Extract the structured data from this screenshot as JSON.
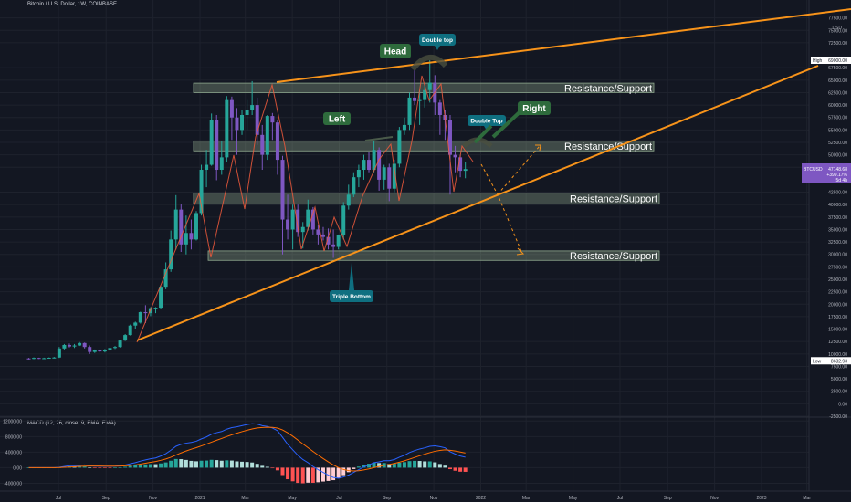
{
  "header": {
    "symbol_title": "Bitcoin / U.S. Dollar, 1W, COINBASE"
  },
  "currency": "USD",
  "chart_data": {
    "type": "candlestick",
    "title": "Bitcoin / U.S. Dollar, 1W, COINBASE",
    "xlabel": "",
    "ylabel": "",
    "ylim": [
      -2500,
      80000
    ],
    "grid": true,
    "x_tick_labels": [
      "Jul",
      "Sep",
      "Nov",
      "2021",
      "Mar",
      "May",
      "Jul",
      "Sep",
      "Nov",
      "2022",
      "Mar",
      "May",
      "Jul",
      "Sep",
      "Nov",
      "2023",
      "Mar"
    ],
    "x_tick_days": [
      0,
      62,
      123,
      184,
      243,
      304,
      365,
      427,
      488,
      549,
      608,
      669,
      730,
      792,
      853,
      914,
      973
    ],
    "y_tick_labels": [
      "-2500.00",
      "0.00",
      "2500.00",
      "5000.00",
      "7500.00",
      "10000.00",
      "12500.00",
      "15000.00",
      "17500.00",
      "20000.00",
      "22500.00",
      "25000.00",
      "27500.00",
      "30000.00",
      "32500.00",
      "35000.00",
      "37500.00",
      "40000.00",
      "42500.00",
      "47500.00",
      "50000.00",
      "52500.00",
      "55000.00",
      "57500.00",
      "60000.00",
      "62500.00",
      "65000.00",
      "67500.00",
      "72500.00",
      "75000.00",
      "77500.00"
    ],
    "price_labels": {
      "high": {
        "label": "High",
        "value": "69000.00"
      },
      "low": {
        "label": "Low",
        "value": "8632.93"
      },
      "current": {
        "ticker": "BTCUSD",
        "price": "47148.68",
        "change": "+399.17%",
        "countdown": "5d 4h"
      }
    },
    "candles": [
      [
        9100,
        9200,
        8900,
        9050
      ],
      [
        9050,
        9300,
        8950,
        9200
      ],
      [
        9200,
        9250,
        9000,
        9100
      ],
      [
        9100,
        9250,
        9000,
        9150
      ],
      [
        9150,
        9300,
        9050,
        9230
      ],
      [
        9230,
        9400,
        9100,
        9280
      ],
      [
        9280,
        11400,
        9200,
        11100
      ],
      [
        11100,
        12000,
        10900,
        11800
      ],
      [
        11800,
        12100,
        11300,
        11500
      ],
      [
        11500,
        12000,
        11200,
        11700
      ],
      [
        11700,
        12400,
        11600,
        12200
      ],
      [
        12200,
        12300,
        11100,
        11400
      ],
      [
        11400,
        11700,
        10000,
        10400
      ],
      [
        10400,
        10900,
        10200,
        10700
      ],
      [
        10700,
        10900,
        10300,
        10500
      ],
      [
        10500,
        11000,
        10300,
        10800
      ],
      [
        10800,
        11300,
        10600,
        11200
      ],
      [
        11200,
        11600,
        11000,
        11400
      ],
      [
        11400,
        12800,
        11300,
        12700
      ],
      [
        12700,
        14000,
        12600,
        13800
      ],
      [
        13800,
        15900,
        13700,
        15700
      ],
      [
        15700,
        16500,
        15000,
        16300
      ],
      [
        16300,
        18500,
        16100,
        18400
      ],
      [
        18400,
        19800,
        16200,
        18200
      ],
      [
        18200,
        19400,
        17600,
        19200
      ],
      [
        19200,
        19400,
        18200,
        19300
      ],
      [
        19300,
        23800,
        19000,
        23500
      ],
      [
        23500,
        28400,
        23000,
        27000
      ],
      [
        27000,
        34800,
        26500,
        33000
      ],
      [
        33000,
        41900,
        31000,
        39000
      ],
      [
        39000,
        40100,
        30500,
        32000
      ],
      [
        32000,
        37800,
        30000,
        34300
      ],
      [
        34300,
        37000,
        31000,
        33000
      ],
      [
        33000,
        38700,
        32800,
        38300
      ],
      [
        38300,
        48000,
        37800,
        47000
      ],
      [
        47000,
        51000,
        43500,
        48000
      ],
      [
        48000,
        58300,
        47800,
        57000
      ],
      [
        57000,
        58000,
        44900,
        47000
      ],
      [
        47000,
        52700,
        46000,
        49500
      ],
      [
        49500,
        61800,
        48500,
        61000
      ],
      [
        61000,
        61700,
        53000,
        57500
      ],
      [
        57500,
        59400,
        50000,
        55000
      ],
      [
        55000,
        59000,
        54000,
        58000
      ],
      [
        58000,
        61000,
        55000,
        59000
      ],
      [
        59000,
        64800,
        58000,
        60000
      ],
      [
        60000,
        61500,
        52000,
        54000
      ],
      [
        54000,
        56000,
        47000,
        50000
      ],
      [
        50000,
        58000,
        49000,
        57800
      ],
      [
        57800,
        58400,
        53000,
        56500
      ],
      [
        56500,
        57000,
        46000,
        49000
      ],
      [
        49000,
        49800,
        30000,
        37000
      ],
      [
        37000,
        42000,
        33000,
        35000
      ],
      [
        35000,
        40000,
        31000,
        39000
      ],
      [
        39000,
        40000,
        33500,
        34500
      ],
      [
        34500,
        36500,
        31200,
        35500
      ],
      [
        35500,
        41000,
        34800,
        39000
      ],
      [
        39000,
        39500,
        34000,
        35000
      ],
      [
        35000,
        36000,
        32000,
        34000
      ],
      [
        34000,
        35500,
        32800,
        33500
      ],
      [
        33500,
        35200,
        31000,
        32000
      ],
      [
        32000,
        35000,
        29300,
        31500
      ],
      [
        31500,
        34000,
        31000,
        33800
      ],
      [
        33800,
        40500,
        33000,
        39800
      ],
      [
        39800,
        44000,
        39000,
        42000
      ],
      [
        42000,
        46500,
        41500,
        45500
      ],
      [
        45500,
        48000,
        43500,
        47000
      ],
      [
        47000,
        50000,
        45000,
        49000
      ],
      [
        49000,
        50500,
        46500,
        47000
      ],
      [
        47000,
        52900,
        46500,
        51000
      ],
      [
        51000,
        51500,
        42800,
        45000
      ],
      [
        45000,
        48000,
        43000,
        47500
      ],
      [
        47500,
        48200,
        40700,
        43200
      ],
      [
        43200,
        49000,
        42500,
        48200
      ],
      [
        48200,
        55600,
        47500,
        55000
      ],
      [
        55000,
        57500,
        54000,
        56000
      ],
      [
        56000,
        62500,
        55000,
        61500
      ],
      [
        61500,
        67000,
        60000,
        60800
      ],
      [
        60800,
        63000,
        56000,
        61000
      ],
      [
        61000,
        64000,
        59500,
        63000
      ],
      [
        63000,
        69000,
        60500,
        64500
      ],
      [
        64500,
        66000,
        58000,
        60500
      ],
      [
        60500,
        61000,
        54000,
        58000
      ],
      [
        58000,
        59000,
        53000,
        57000
      ],
      [
        57000,
        58000,
        42000,
        50000
      ],
      [
        50000,
        51800,
        46500,
        49500
      ],
      [
        49500,
        50000,
        45500,
        46800
      ],
      [
        46800,
        48600,
        45300,
        47148
      ]
    ],
    "macd": {
      "title": "MACD (12, 26, close, 9, EMA, EMA)",
      "ylim": [
        -6000,
        13000
      ],
      "y_tick_labels": [
        "12000.00",
        "8000.00",
        "4000.00",
        "0.00",
        "-4000.00"
      ],
      "macd_line": [
        0,
        0,
        0,
        0,
        0,
        0,
        100,
        300,
        500,
        500,
        600,
        700,
        500,
        400,
        400,
        350,
        350,
        400,
        500,
        700,
        1000,
        1300,
        1700,
        2000,
        2300,
        2500,
        3000,
        3600,
        4500,
        5500,
        6000,
        6300,
        6500,
        6800,
        7400,
        7900,
        8600,
        9000,
        9300,
        9900,
        10300,
        10500,
        10800,
        11100,
        11300,
        11200,
        10800,
        10600,
        10200,
        9500,
        7800,
        6000,
        4600,
        3200,
        2100,
        1300,
        300,
        -500,
        -1200,
        -1900,
        -2500,
        -2700,
        -2400,
        -1900,
        -1200,
        -500,
        200,
        700,
        1300,
        1500,
        1800,
        1800,
        2100,
        2700,
        3200,
        3900,
        4400,
        4800,
        5100,
        5500,
        5600,
        5400,
        5100,
        4100,
        3500,
        3000,
        2700
      ],
      "signal_line": [
        0,
        0,
        0,
        0,
        0,
        0,
        30,
        90,
        170,
        250,
        320,
        400,
        420,
        420,
        420,
        400,
        400,
        400,
        420,
        480,
        580,
        730,
        930,
        1150,
        1380,
        1600,
        1900,
        2240,
        2700,
        3260,
        3800,
        4300,
        4740,
        5150,
        5600,
        6060,
        6570,
        7050,
        7500,
        8000,
        8460,
        8870,
        9260,
        9630,
        9960,
        10210,
        10330,
        10380,
        10350,
        10180,
        9700,
        8960,
        8090,
        7110,
        6110,
        5150,
        4180,
        3240,
        2350,
        1500,
        700,
        20,
        -470,
        -750,
        -850,
        -780,
        -580,
        -320,
        0,
        300,
        600,
        840,
        1090,
        1410,
        1770,
        2200,
        2640,
        3070,
        3470,
        3870,
        4220,
        4450,
        4580,
        4480,
        4280,
        4030,
        3760
      ],
      "histogram": [
        0,
        0,
        0,
        0,
        0,
        0,
        70,
        210,
        330,
        250,
        280,
        300,
        80,
        -20,
        -20,
        -50,
        -50,
        0,
        80,
        220,
        420,
        570,
        770,
        850,
        920,
        900,
        1100,
        1360,
        1800,
        2240,
        2200,
        2000,
        1760,
        1650,
        1800,
        1840,
        2030,
        1950,
        1800,
        1900,
        1840,
        1630,
        1540,
        1470,
        1340,
        990,
        470,
        220,
        -150,
        -680,
        -1900,
        -2960,
        -3490,
        -3910,
        -4010,
        -3850,
        -3880,
        -3740,
        -3550,
        -3400,
        -3200,
        -2720,
        -1930,
        -1150,
        -350,
        280,
        780,
        1020,
        1300,
        1200,
        1200,
        960,
        1010,
        1290,
        1430,
        1700,
        1760,
        1730,
        1630,
        1630,
        1380,
        950,
        520,
        -380,
        -780,
        -1030,
        -1060
      ]
    },
    "annotations": {
      "zones": [
        "Resistance/Support",
        "Resistance/Support",
        "Resistance/Support",
        "Resistance/Support"
      ],
      "head": "Head",
      "left": "Left",
      "right": "Right",
      "double_top_1": "Double top",
      "double_top_2": "Double Top",
      "triple_bottom": "Triple Bottom"
    }
  },
  "colors": {
    "background": "#131722",
    "bull": "#26a69a",
    "bear": "#7e57c2",
    "trend": "#f7931a",
    "zigzag": "#f05a3c",
    "zone_fill": "rgba(180,210,170,0.28)",
    "zone_border": "#8ea88e",
    "label_green": "#2e6b3c",
    "label_teal": "#0f6f80",
    "macd_line": "#2962ff",
    "signal_line": "#ff6d00"
  }
}
